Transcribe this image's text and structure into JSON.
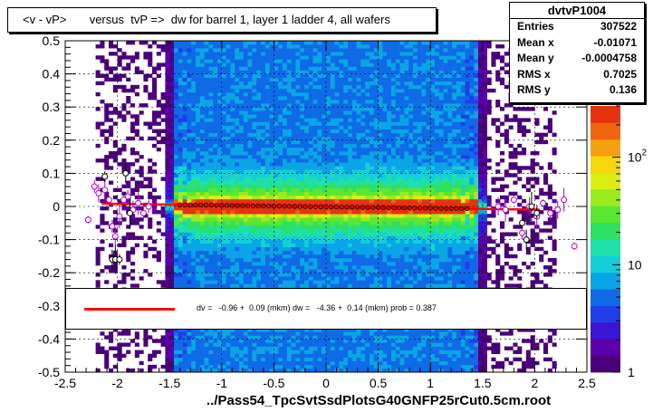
{
  "title": "<v - vP>       versus  tvP =>  dw for barrel 1, layer 1 ladder 4, all wafers",
  "stats": {
    "name": "dvtvP1004",
    "rows": [
      {
        "label": "Entries",
        "value": "307522"
      },
      {
        "label": "Mean x",
        "value": "-0.01071"
      },
      {
        "label": "Mean y",
        "value": "-0.0004758"
      },
      {
        "label": "RMS x",
        "value": "0.7025"
      },
      {
        "label": "RMS y",
        "value": "0.136"
      }
    ]
  },
  "fit_text": "dv =   -0.96 +  0.09 (mkm) dw =   -4.36 +  0.14 (mkm) prob = 0.387",
  "chart_data": {
    "type": "heatmap",
    "xlabel": "../Pass54_TpcSvtSsdPlotsG40GNFP25rCut0.5cm.root",
    "xlim": [
      -2.5,
      2.5
    ],
    "ylim": [
      -0.5,
      0.5
    ],
    "x_ticks": [
      "-2.5",
      "-2",
      "-1.5",
      "-1",
      "-0.5",
      "0",
      "0.5",
      "1",
      "1.5",
      "2",
      "2.5"
    ],
    "y_ticks": [
      "-0.5",
      "-0.4",
      "-0.3",
      "-0.2",
      "-0.1",
      "0",
      "0.1",
      "0.2",
      "0.3",
      "0.4",
      "0.5"
    ],
    "z_ticks": [
      "1",
      "10",
      "10^2"
    ],
    "z_scale": "log",
    "z_range": [
      1,
      300
    ],
    "grid": true,
    "fit": {
      "color": "#ff0000",
      "intercept": -0.00096,
      "slope": -0.00436,
      "prob": 0.387
    },
    "profile_points_magenta": [
      {
        "x": -2.28,
        "y": -0.04
      },
      {
        "x": -2.22,
        "y": 0.06
      },
      {
        "x": -2.18,
        "y": 0.04
      },
      {
        "x": -2.12,
        "y": 0.05
      },
      {
        "x": -2.08,
        "y": 0.02
      },
      {
        "x": -2.05,
        "y": -0.06
      },
      {
        "x": -2.02,
        "y": -0.09
      },
      {
        "x": -1.98,
        "y": -0.03
      },
      {
        "x": -1.94,
        "y": 0.02
      },
      {
        "x": -1.9,
        "y": 0.03
      },
      {
        "x": -1.85,
        "y": -0.01
      },
      {
        "x": -1.8,
        "y": 0.01
      },
      {
        "x": -1.75,
        "y": -0.02
      },
      {
        "x": -1.7,
        "y": 0.0
      },
      {
        "x": 1.65,
        "y": 0.0
      },
      {
        "x": 1.72,
        "y": -0.01
      },
      {
        "x": 1.8,
        "y": 0.02
      },
      {
        "x": 1.88,
        "y": -0.08
      },
      {
        "x": 1.95,
        "y": 0.0
      },
      {
        "x": 2.02,
        "y": -0.03
      },
      {
        "x": 2.08,
        "y": 0.01
      },
      {
        "x": 2.15,
        "y": -0.02
      },
      {
        "x": 2.22,
        "y": -0.01
      },
      {
        "x": 2.28,
        "y": 0.02
      },
      {
        "x": 2.38,
        "y": -0.12
      }
    ],
    "profile_points_black": [
      {
        "x": -2.12,
        "y": 0.09
      },
      {
        "x": -2.05,
        "y": -0.16
      },
      {
        "x": -2.02,
        "y": -0.16
      },
      {
        "x": -1.98,
        "y": -0.16
      },
      {
        "x": -1.92,
        "y": 0.1
      },
      {
        "x": -1.88,
        "y": -0.02
      },
      {
        "x": 1.88,
        "y": -0.05
      },
      {
        "x": 1.92,
        "y": -0.1
      },
      {
        "x": 1.97,
        "y": 0.0
      },
      {
        "x": 2.02,
        "y": -0.02
      }
    ]
  },
  "colors": {
    "palette": [
      "#4a007a",
      "#5a00ad",
      "#3c14d6",
      "#1f3ee6",
      "#0f6ae6",
      "#0aa5e6",
      "#14cfd9",
      "#1fe0a8",
      "#2ee064",
      "#5ce632",
      "#9ceb1e",
      "#dced14",
      "#f5d70f",
      "#f5a00f",
      "#f0640f",
      "#e6320f"
    ],
    "fit_line": "#ff0000",
    "magenta": "#aa00cc"
  }
}
